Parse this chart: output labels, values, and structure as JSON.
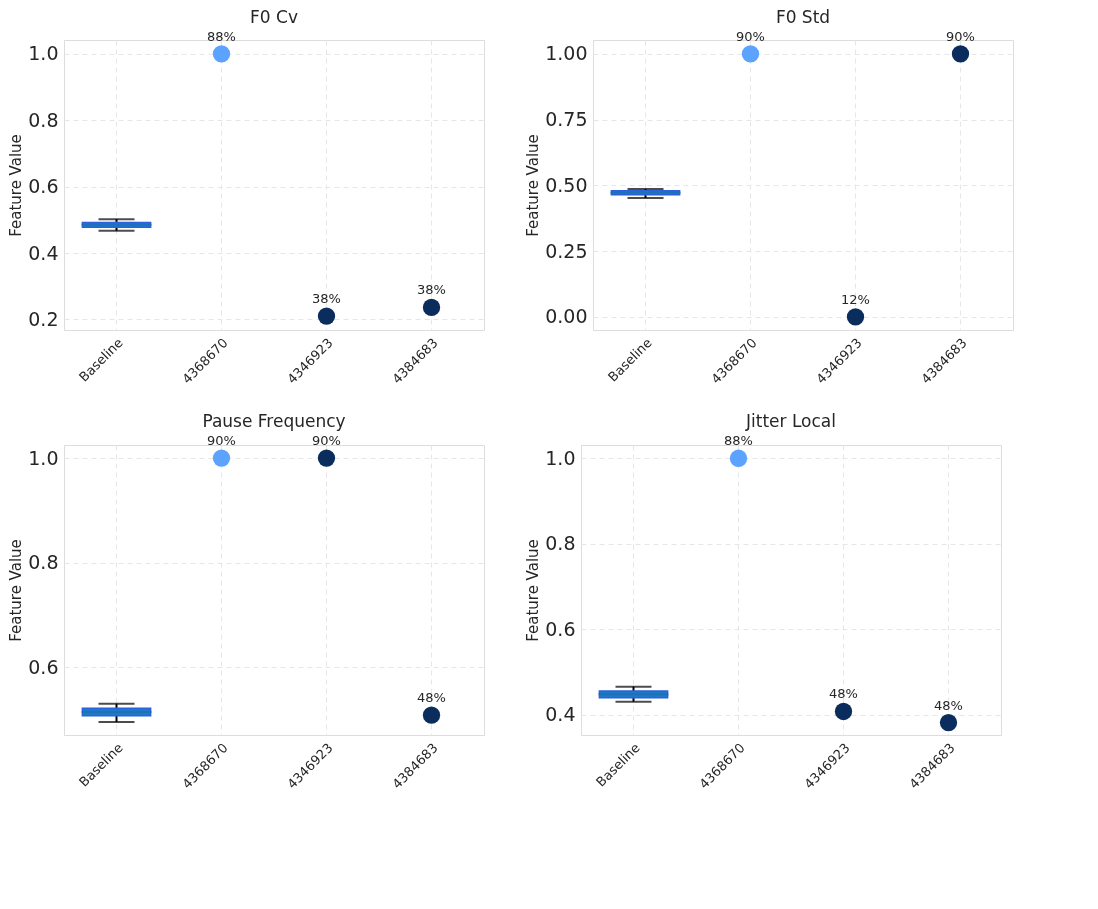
{
  "chart_data": [
    {
      "type": "box",
      "title": "F0 Cv",
      "ylabel": "Feature Value",
      "categories": [
        "Baseline",
        "4368670",
        "4346923",
        "4384683"
      ],
      "ylim": [
        0.168,
        1.042
      ],
      "yticks": [
        0.2,
        0.4,
        0.6,
        0.8,
        {
          "value": 1.0,
          "label": "1.0"
        }
      ],
      "grid": true,
      "series": [
        {
          "type": "box",
          "color": "#1f78c8",
          "x": [
            "Baseline"
          ],
          "boxes": [
            {
              "low": 0.467,
              "q1": 0.478,
              "median": 0.485,
              "q3": 0.492,
              "high": 0.502
            }
          ]
        },
        {
          "type": "scatter",
          "x": [
            "4368670",
            "4346923",
            "4384683"
          ],
          "values": [
            1.0,
            0.21,
            0.236
          ],
          "colors": [
            "#5ba3ff",
            "#0a2d5e",
            "#0a2d5e"
          ]
        }
      ],
      "annotations": [
        {
          "text": "88%",
          "x": "4368670",
          "y": 1.0
        },
        {
          "text": "38%",
          "x": "4346923",
          "y": 0.21
        },
        {
          "text": "38%",
          "x": "4384683",
          "y": 0.236
        }
      ]
    },
    {
      "type": "box",
      "title": "F0 Std",
      "ylabel": "Feature Value",
      "categories": [
        "Baseline",
        "4368670",
        "4346923",
        "4384683"
      ],
      "ylim": [
        -0.05,
        1.053
      ],
      "yticks": [
        {
          "value": 0,
          "label": "0.00"
        },
        {
          "value": 0.25,
          "label": "0.25"
        },
        {
          "value": 0.5,
          "label": "0.50"
        },
        {
          "value": 0.75,
          "label": "0.75"
        },
        {
          "value": 1.0,
          "label": "1.00"
        }
      ],
      "grid": true,
      "series": [
        {
          "type": "box",
          "color": "#1f78c8",
          "x": [
            "Baseline"
          ],
          "boxes": [
            {
              "low": 0.452,
              "q1": 0.464,
              "median": 0.472,
              "q3": 0.48,
              "high": 0.486
            }
          ]
        },
        {
          "type": "scatter",
          "x": [
            "4368670",
            "4346923",
            "4384683"
          ],
          "values": [
            1.0,
            0.0,
            1.0
          ],
          "colors": [
            "#5ba3ff",
            "#0a2d5e",
            "#0a2d5e"
          ]
        }
      ],
      "annotations": [
        {
          "text": "90%",
          "x": "4368670",
          "y": 1.0
        },
        {
          "text": "12%",
          "x": "4346923",
          "y": 0.0
        },
        {
          "text": "90%",
          "x": "4384683",
          "y": 1.0
        }
      ]
    },
    {
      "type": "box",
      "title": "Pause Frequency",
      "ylabel": "Feature Value",
      "categories": [
        "Baseline",
        "4368670",
        "4346923",
        "4384683"
      ],
      "ylim": [
        0.47,
        1.025
      ],
      "yticks": [
        0.6,
        0.8,
        {
          "value": 1.0,
          "label": "1.0"
        }
      ],
      "grid": true,
      "series": [
        {
          "type": "box",
          "color": "#1f78c8",
          "x": [
            "Baseline"
          ],
          "boxes": [
            {
              "low": 0.495,
              "q1": 0.507,
              "median": 0.514,
              "q3": 0.521,
              "high": 0.53
            }
          ]
        },
        {
          "type": "scatter",
          "x": [
            "4368670",
            "4346923",
            "4384683"
          ],
          "values": [
            1.0,
            1.0,
            0.508
          ],
          "colors": [
            "#5ba3ff",
            "#0a2d5e",
            "#0a2d5e"
          ]
        }
      ],
      "annotations": [
        {
          "text": "90%",
          "x": "4368670",
          "y": 1.0
        },
        {
          "text": "90%",
          "x": "4346923",
          "y": 1.0
        },
        {
          "text": "48%",
          "x": "4384683",
          "y": 0.508
        }
      ]
    },
    {
      "type": "box",
      "title": "Jitter Local",
      "ylabel": "Feature Value",
      "categories": [
        "Baseline",
        "4368670",
        "4346923",
        "4384683"
      ],
      "ylim": [
        0.353,
        1.031
      ],
      "yticks": [
        0.4,
        0.6,
        0.8,
        {
          "value": 1.0,
          "label": "1.0"
        }
      ],
      "grid": true,
      "series": [
        {
          "type": "box",
          "color": "#1f78c8",
          "x": [
            "Baseline"
          ],
          "boxes": [
            {
              "low": 0.431,
              "q1": 0.44,
              "median": 0.448,
              "q3": 0.456,
              "high": 0.466
            }
          ]
        },
        {
          "type": "scatter",
          "x": [
            "4368670",
            "4346923",
            "4384683"
          ],
          "values": [
            1.0,
            0.408,
            0.382
          ],
          "colors": [
            "#5ba3ff",
            "#0a2d5e",
            "#0a2d5e"
          ]
        }
      ],
      "annotations": [
        {
          "text": "88%",
          "x": "4368670",
          "y": 1.0
        },
        {
          "text": "48%",
          "x": "4346923",
          "y": 0.408
        },
        {
          "text": "48%",
          "x": "4384683",
          "y": 0.382
        }
      ]
    }
  ]
}
